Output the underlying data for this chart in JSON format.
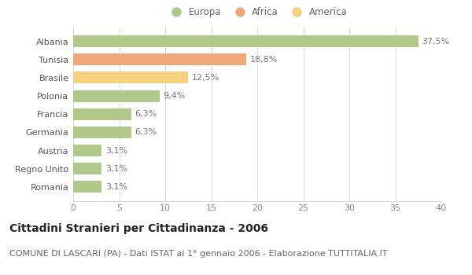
{
  "categories": [
    "Albania",
    "Tunisia",
    "Brasile",
    "Polonia",
    "Francia",
    "Germania",
    "Austria",
    "Regno Unito",
    "Romania"
  ],
  "values": [
    37.5,
    18.8,
    12.5,
    9.4,
    6.3,
    6.3,
    3.1,
    3.1,
    3.1
  ],
  "labels": [
    "37,5%",
    "18,8%",
    "12,5%",
    "9,4%",
    "6,3%",
    "6,3%",
    "3,1%",
    "3,1%",
    "3,1%"
  ],
  "bar_colors": [
    "#aec98a",
    "#f0a878",
    "#f5d080",
    "#aec98a",
    "#aec98a",
    "#aec98a",
    "#aec98a",
    "#aec98a",
    "#aec98a"
  ],
  "legend_labels": [
    "Europa",
    "Africa",
    "America"
  ],
  "legend_colors": [
    "#aec98a",
    "#f0a878",
    "#f5d080"
  ],
  "title": "Cittadini Stranieri per Cittadinanza - 2006",
  "subtitle": "COMUNE DI LASCARI (PA) - Dati ISTAT al 1° gennaio 2006 - Elaborazione TUTTITALIA.IT",
  "xlim": [
    0,
    40
  ],
  "xticks": [
    0,
    5,
    10,
    15,
    20,
    25,
    30,
    35,
    40
  ],
  "background_color": "#ffffff",
  "grid_color": "#d8d8d8",
  "title_fontsize": 10,
  "subtitle_fontsize": 8,
  "label_fontsize": 8,
  "tick_fontsize": 8,
  "legend_fontsize": 8.5
}
